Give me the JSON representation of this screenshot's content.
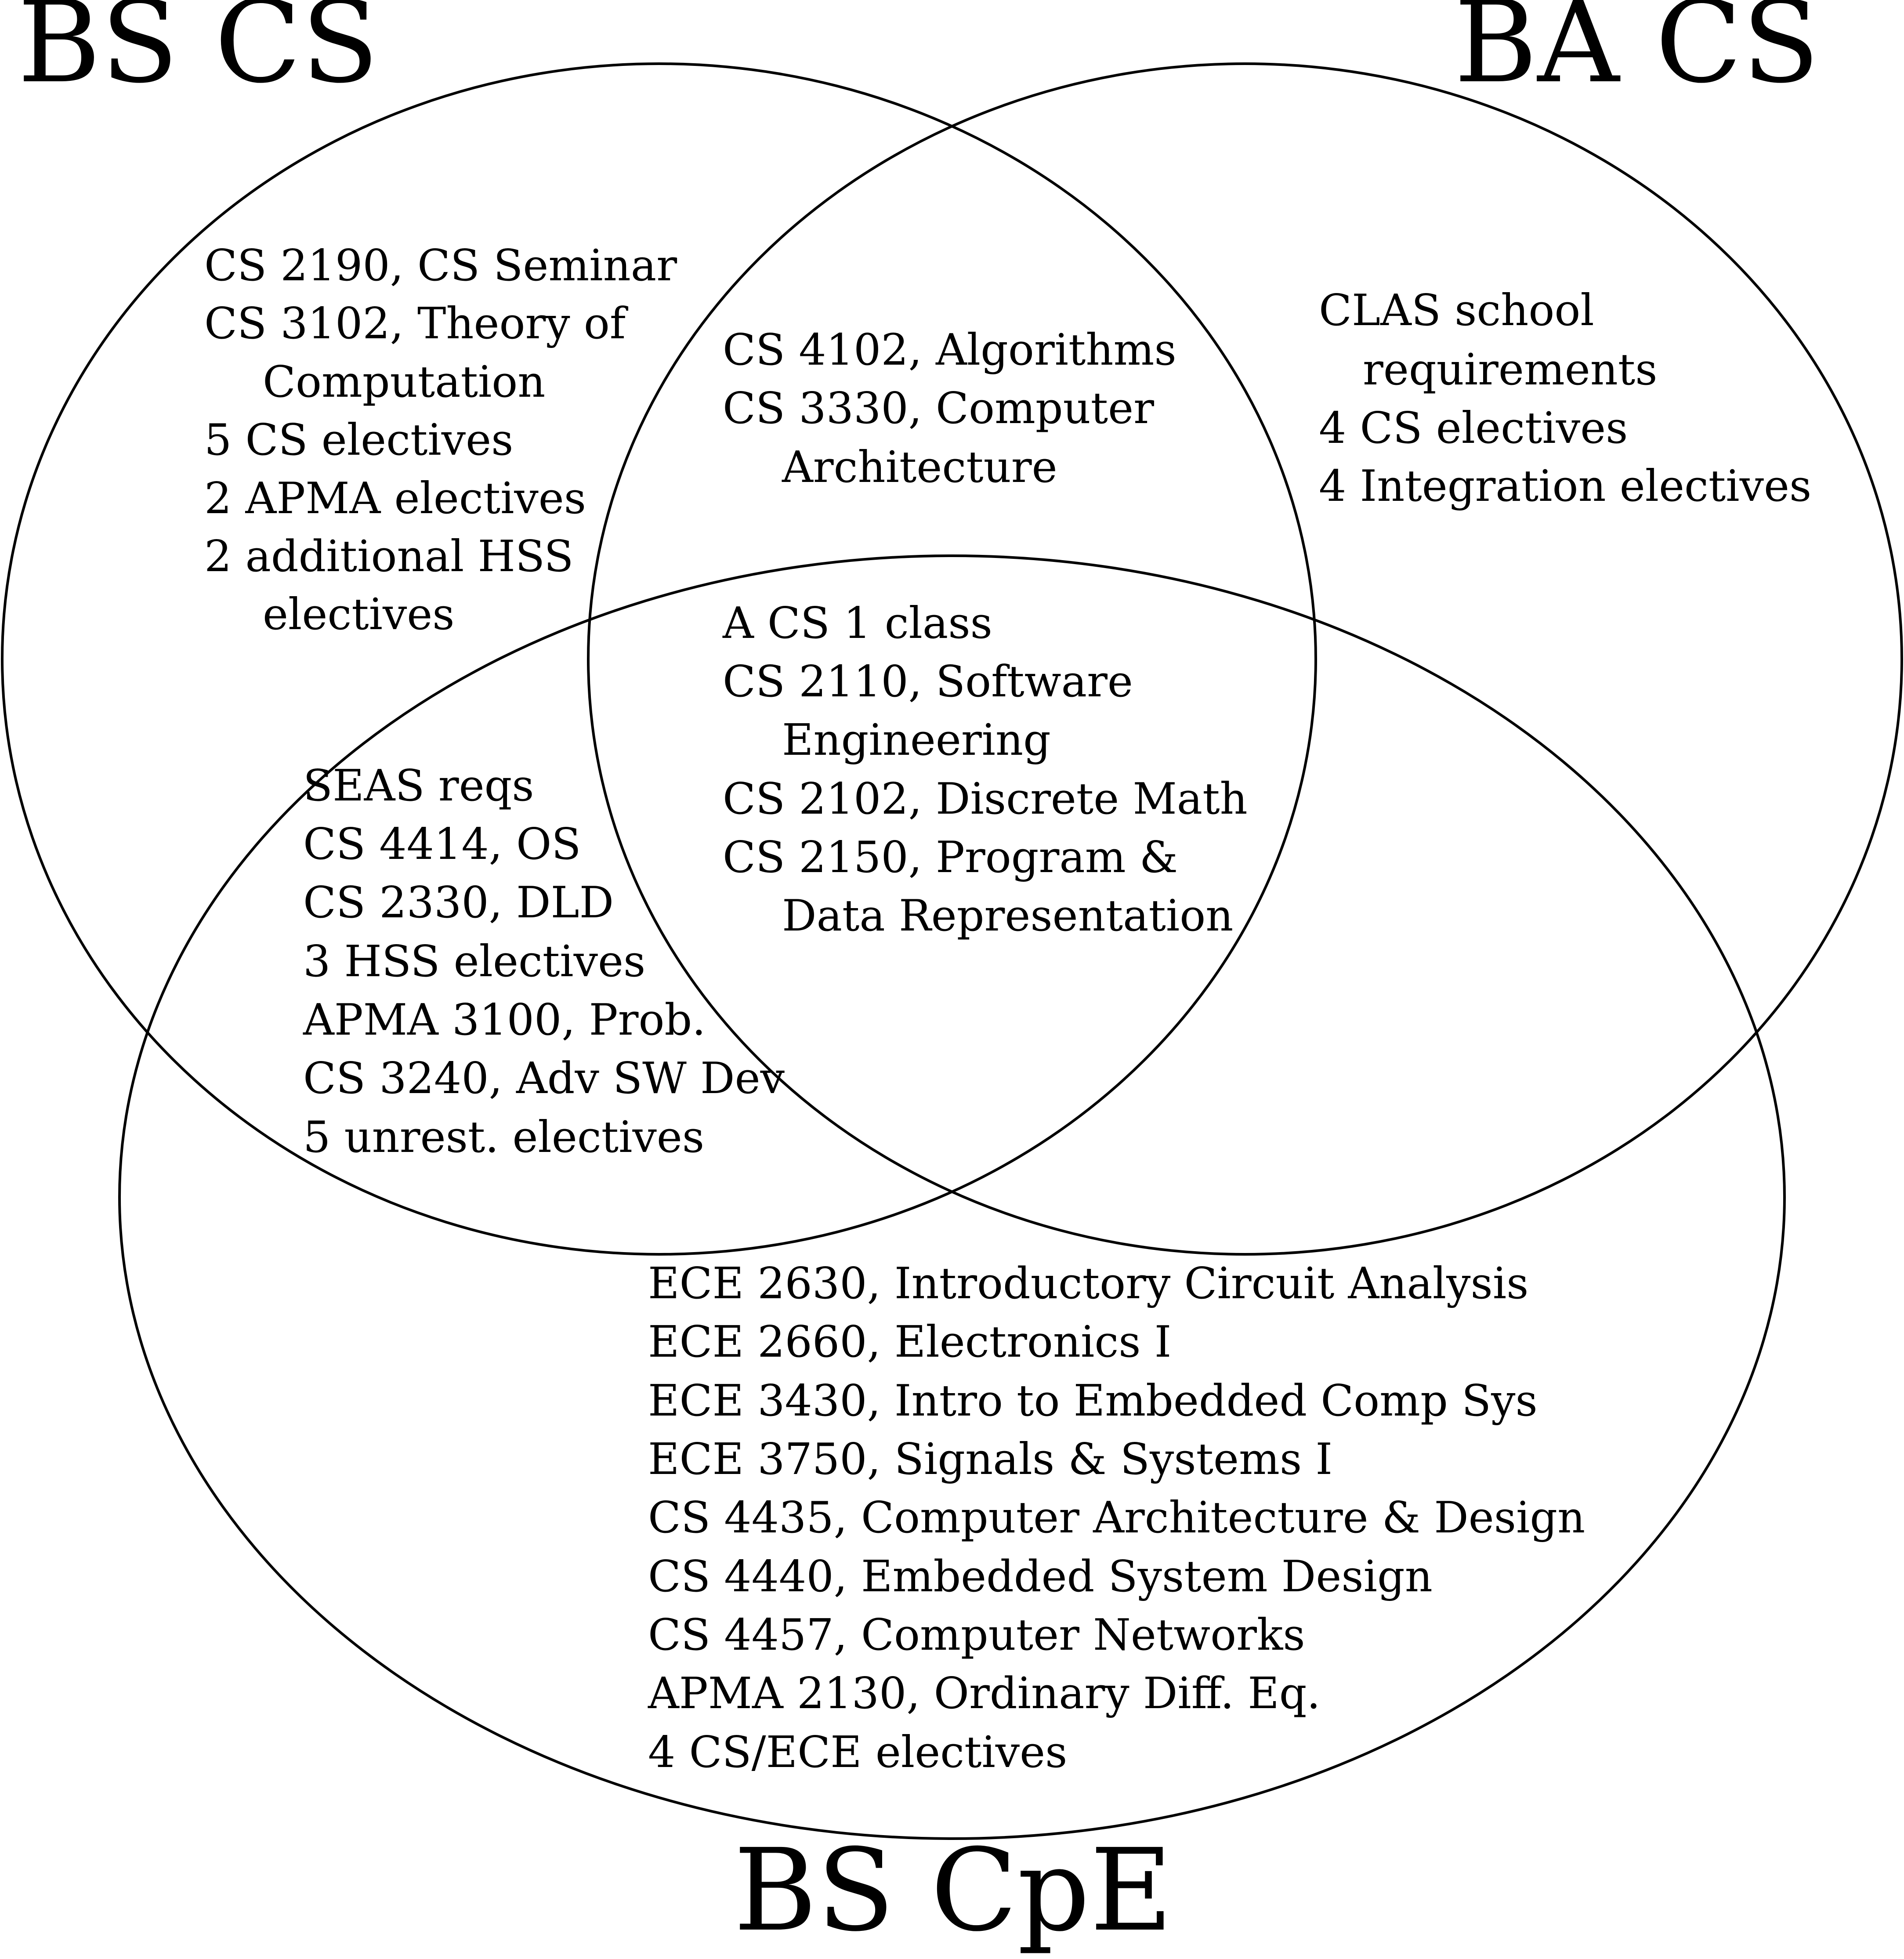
{
  "diagram": {
    "type": "venn",
    "sets": {
      "bs_cs": "BS CS",
      "ba_cs": "BA CS",
      "bs_cpe": "BS CpE"
    },
    "regions": {
      "bs_cs_only": [
        "CS 2190, CS Seminar",
        "CS 3102, Theory of",
        "Computation",
        "5 CS electives",
        "2 APMA electives",
        "2 additional HSS",
        "electives"
      ],
      "ba_cs_only": [
        "CLAS school",
        "requirements",
        "4 CS electives",
        "4 Integration electives"
      ],
      "bs_cs_and_ba_cs": [
        "CS 4102, Algorithms",
        "CS 3330, Computer",
        "Architecture"
      ],
      "all_three": [
        "A CS 1 class",
        "CS 2110, Software",
        "Engineering",
        "CS 2102, Discrete Math",
        "CS 2150, Program &",
        "Data Representation"
      ],
      "bs_cs_and_bs_cpe": [
        "SEAS reqs",
        "CS 4414, OS",
        "CS 2330, DLD",
        "3 HSS electives",
        "APMA 3100, Prob.",
        "CS 3240, Adv SW Dev",
        "5 unrest. electives"
      ],
      "bs_cpe_only": [
        "ECE 2630, Introductory Circuit Analysis",
        "ECE 2660, Electronics I",
        "ECE 3430, Intro to Embedded Comp Sys",
        "ECE 3750, Signals & Systems I",
        "CS 4435, Computer Architecture & Design",
        "CS 4440, Embedded System Design",
        "CS 4457, Computer Networks",
        "APMA 2130, Ordinary Diff. Eq.",
        "4 CS/ECE electives"
      ]
    }
  }
}
